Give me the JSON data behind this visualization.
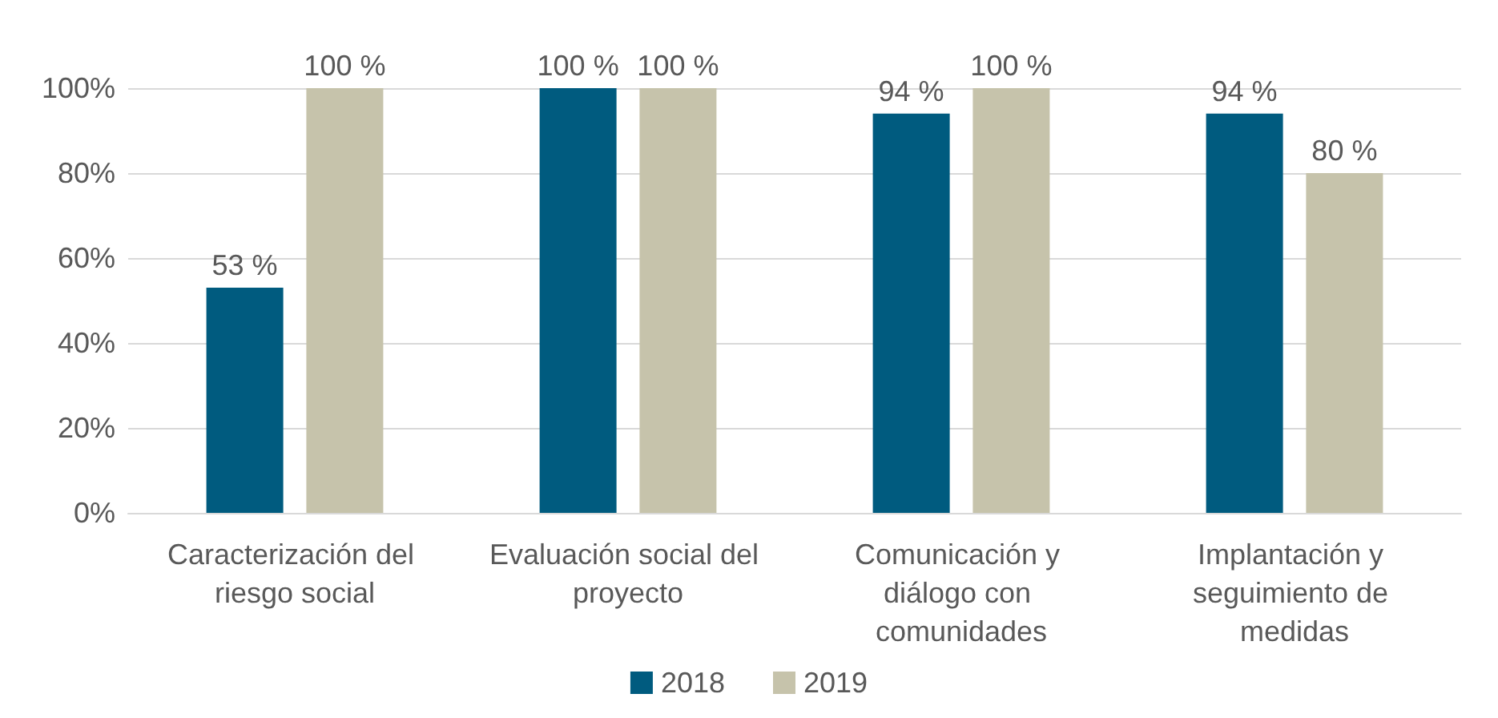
{
  "chart_data": {
    "type": "bar",
    "categories": [
      "Caracterización del riesgo social",
      "Evaluación social del proyecto",
      "Comunicación y diálogo con comunidades",
      "Implantación y seguimiento de medidas"
    ],
    "series": [
      {
        "name": "2018",
        "color": "#005b7f",
        "values": [
          53,
          100,
          94,
          94
        ],
        "value_labels": [
          "53 %",
          "100 %",
          "94 %",
          "94 %"
        ]
      },
      {
        "name": "2019",
        "color": "#c6c3ab",
        "values": [
          100,
          100,
          100,
          80
        ],
        "value_labels": [
          "100 %",
          "100 %",
          "100 %",
          "80 %"
        ]
      }
    ],
    "ylim": [
      0,
      100
    ],
    "yticks": [
      {
        "value": 0,
        "label": "0%"
      },
      {
        "value": 20,
        "label": "20%"
      },
      {
        "value": 40,
        "label": "40%"
      },
      {
        "value": 60,
        "label": "60%"
      },
      {
        "value": 80,
        "label": "80%"
      },
      {
        "value": 100,
        "label": "100%"
      }
    ],
    "grid": "y",
    "legend": "bottom"
  }
}
